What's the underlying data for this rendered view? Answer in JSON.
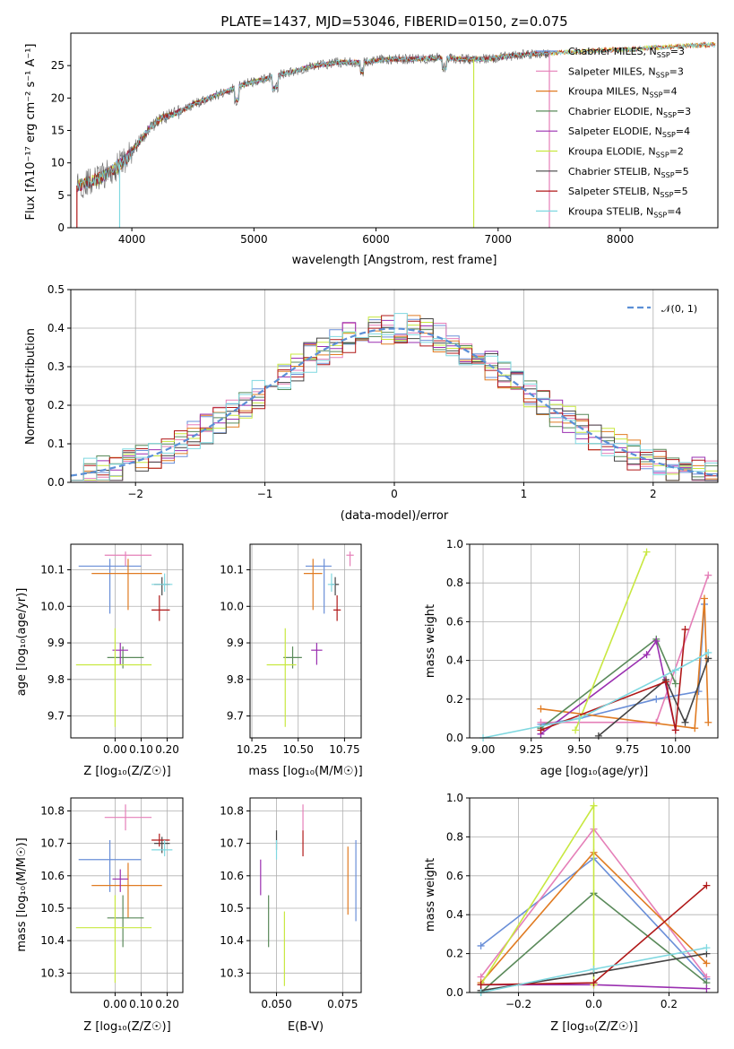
{
  "figure": {
    "title": "PLATE=1437, MJD=53046, FIBERID=0150, z=0.075"
  },
  "colors": {
    "Chabrier MILES": "#6a8fd8",
    "Salpeter MILES": "#e57fb8",
    "Kroupa MILES": "#e07b22",
    "Chabrier ELODIE": "#5a8a5a",
    "Salpeter ELODIE": "#9a2fb0",
    "Kroupa ELODIE": "#c8e840",
    "Chabrier STELIB": "#444444",
    "Salpeter STELIB": "#b01818",
    "Kroupa STELIB": "#7fd8e0",
    "gauss": "#5b8fd6"
  },
  "chart_data": [
    {
      "type": "line",
      "panel": "spectrum",
      "xlabel": "wavelength [Angstrom, rest frame]",
      "ylabel": "Flux [fλ10⁻¹⁷ erg cm⁻² s⁻¹ A⁻¹]",
      "xlim": [
        3500,
        8800
      ],
      "ylim": [
        0,
        30
      ],
      "xticks": [
        4000,
        5000,
        6000,
        7000,
        8000
      ],
      "yticks": [
        0,
        5,
        10,
        15,
        20,
        25
      ],
      "legend_position": "right",
      "legend": [
        {
          "name": "Chabrier MILES, N",
          "sub": "SSP",
          "tail": "=3"
        },
        {
          "name": "Salpeter MILES, N",
          "sub": "SSP",
          "tail": "=3"
        },
        {
          "name": "Kroupa MILES, N",
          "sub": "SSP",
          "tail": "=4"
        },
        {
          "name": "Chabrier ELODIE, N",
          "sub": "SSP",
          "tail": "=3"
        },
        {
          "name": "Salpeter ELODIE, N",
          "sub": "SSP",
          "tail": "=4"
        },
        {
          "name": "Kroupa ELODIE, N",
          "sub": "SSP",
          "tail": "=2"
        },
        {
          "name": "Chabrier STELIB, N",
          "sub": "SSP",
          "tail": "=5"
        },
        {
          "name": "Salpeter STELIB, N",
          "sub": "SSP",
          "tail": "=5"
        },
        {
          "name": "Kroupa STELIB, N",
          "sub": "SSP",
          "tail": "=4"
        }
      ],
      "continuum": {
        "x": [
          3550,
          3650,
          3750,
          3850,
          3950,
          4050,
          4150,
          4250,
          4350,
          4500,
          4700,
          4900,
          5100,
          5300,
          5500,
          5700,
          5900,
          6100,
          6300,
          6500,
          6700,
          6900,
          7100,
          7300,
          7500,
          7700,
          7900,
          8100,
          8300,
          8500,
          8700
        ],
        "y": [
          6.5,
          7.0,
          7.8,
          9.0,
          10.5,
          13.0,
          15.5,
          17.0,
          17.5,
          19.0,
          20.5,
          22.0,
          23.0,
          24.0,
          25.0,
          25.5,
          25.5,
          26.0,
          26.0,
          26.2,
          26.0,
          26.0,
          26.5,
          26.8,
          27.0,
          27.2,
          27.4,
          27.5,
          27.8,
          28.0,
          28.2
        ]
      }
    },
    {
      "type": "bar",
      "panel": "residuals",
      "xlabel": "(data-model)/error",
      "ylabel": "Normed distribution",
      "xlim": [
        -2.5,
        2.5
      ],
      "ylim": [
        0,
        0.5
      ],
      "xticks": [
        -2,
        -1,
        0,
        1,
        2
      ],
      "yticks": [
        0.0,
        0.1,
        0.2,
        0.3,
        0.4,
        0.5
      ],
      "legend": "𝒩(0, 1)",
      "legend_position": "top-right",
      "grid": true,
      "bin_width": 0.1
    },
    {
      "type": "scatter",
      "panel": "age_vs_Z",
      "xlabel": "Z [log₁₀(Z/Z☉)]",
      "ylabel": "age  [log₁₀(age/yr)]",
      "xlim": [
        -0.17,
        0.26
      ],
      "ylim": [
        9.64,
        10.17
      ],
      "xticks": [
        0.0,
        0.1,
        0.2
      ],
      "yticks": [
        9.7,
        9.8,
        9.9,
        10.0,
        10.1
      ],
      "grid": true,
      "points": [
        {
          "series": "Chabrier MILES",
          "x": -0.02,
          "y": 10.11,
          "xerr": [
            0.12,
            0.12
          ],
          "yerr": [
            0.13,
            0.02
          ]
        },
        {
          "series": "Salpeter MILES",
          "x": 0.04,
          "y": 10.14,
          "xerr": [
            0.08,
            0.1
          ],
          "yerr": [
            0.03,
            0.01
          ]
        },
        {
          "series": "Kroupa MILES",
          "x": 0.05,
          "y": 10.09,
          "xerr": [
            0.14,
            0.13
          ],
          "yerr": [
            0.1,
            0.04
          ]
        },
        {
          "series": "Chabrier ELODIE",
          "x": 0.03,
          "y": 9.86,
          "xerr": [
            0.06,
            0.08
          ],
          "yerr": [
            0.03,
            0.03
          ]
        },
        {
          "series": "Salpeter ELODIE",
          "x": 0.02,
          "y": 9.88,
          "xerr": [
            0.03,
            0.03
          ],
          "yerr": [
            0.04,
            0.02
          ]
        },
        {
          "series": "Kroupa ELODIE",
          "x": 0.0,
          "y": 9.84,
          "xerr": [
            0.15,
            0.14
          ],
          "yerr": [
            0.17,
            0.1
          ]
        },
        {
          "series": "Chabrier STELIB",
          "x": 0.18,
          "y": 10.06,
          "xerr": [
            0.03,
            0.03
          ],
          "yerr": [
            0.03,
            0.02
          ]
        },
        {
          "series": "Salpeter STELIB",
          "x": 0.17,
          "y": 9.99,
          "xerr": [
            0.03,
            0.04
          ],
          "yerr": [
            0.03,
            0.04
          ]
        },
        {
          "series": "Kroupa STELIB",
          "x": 0.19,
          "y": 10.06,
          "xerr": [
            0.05,
            0.03
          ],
          "yerr": [
            0.02,
            0.03
          ]
        }
      ]
    },
    {
      "type": "scatter",
      "panel": "age_vs_mass",
      "xlabel": "mass [log₁₀(M/M☉)]",
      "xlim": [
        10.24,
        10.84
      ],
      "ylim": [
        9.64,
        10.17
      ],
      "xticks": [
        10.25,
        10.5,
        10.75
      ],
      "yticks": [
        9.7,
        9.8,
        9.9,
        10.0,
        10.1
      ],
      "grid": true,
      "points": [
        {
          "series": "Chabrier MILES",
          "x": 10.64,
          "y": 10.11,
          "xerr": [
            0.1,
            0.04
          ],
          "yerr": [
            0.13,
            0.02
          ]
        },
        {
          "series": "Salpeter MILES",
          "x": 10.78,
          "y": 10.14,
          "xerr": [
            0.02,
            0.02
          ],
          "yerr": [
            0.03,
            0.01
          ]
        },
        {
          "series": "Kroupa MILES",
          "x": 10.58,
          "y": 10.09,
          "xerr": [
            0.05,
            0.05
          ],
          "yerr": [
            0.1,
            0.04
          ]
        },
        {
          "series": "Chabrier ELODIE",
          "x": 10.47,
          "y": 9.86,
          "xerr": [
            0.05,
            0.05
          ],
          "yerr": [
            0.03,
            0.03
          ]
        },
        {
          "series": "Salpeter ELODIE",
          "x": 10.6,
          "y": 9.88,
          "xerr": [
            0.03,
            0.03
          ],
          "yerr": [
            0.04,
            0.02
          ]
        },
        {
          "series": "Kroupa ELODIE",
          "x": 10.43,
          "y": 9.84,
          "xerr": [
            0.1,
            0.06
          ],
          "yerr": [
            0.17,
            0.1
          ]
        },
        {
          "series": "Chabrier STELIB",
          "x": 10.7,
          "y": 10.06,
          "xerr": [
            0.02,
            0.02
          ],
          "yerr": [
            0.03,
            0.02
          ]
        },
        {
          "series": "Salpeter STELIB",
          "x": 10.71,
          "y": 9.99,
          "xerr": [
            0.02,
            0.02
          ],
          "yerr": [
            0.03,
            0.04
          ]
        },
        {
          "series": "Kroupa STELIB",
          "x": 10.68,
          "y": 10.06,
          "xerr": [
            0.02,
            0.02
          ],
          "yerr": [
            0.02,
            0.03
          ]
        }
      ]
    },
    {
      "type": "line",
      "panel": "weight_vs_age",
      "xlabel": "age  [log₁₀(age/yr)]",
      "ylabel": "mass weight",
      "xlim": [
        8.93,
        10.22
      ],
      "ylim": [
        0,
        1
      ],
      "xticks": [
        9.0,
        9.25,
        9.5,
        9.75,
        10.0
      ],
      "yticks": [
        0.0,
        0.2,
        0.4,
        0.6,
        0.8,
        1.0
      ],
      "grid": true,
      "series": [
        {
          "name": "Chabrier MILES",
          "x": [
            9.3,
            9.5,
            9.9,
            10.12,
            10.15
          ],
          "y": [
            0.07,
            0.1,
            0.2,
            0.24,
            0.69
          ]
        },
        {
          "name": "Salpeter MILES",
          "x": [
            9.3,
            9.9,
            10.17
          ],
          "y": [
            0.08,
            0.08,
            0.84
          ]
        },
        {
          "name": "Kroupa MILES",
          "x": [
            9.3,
            10.1,
            10.15,
            10.17
          ],
          "y": [
            0.15,
            0.05,
            0.72,
            0.08
          ]
        },
        {
          "name": "Chabrier ELODIE",
          "x": [
            9.3,
            9.9,
            10.0
          ],
          "y": [
            0.05,
            0.51,
            0.28
          ]
        },
        {
          "name": "Salpeter ELODIE",
          "x": [
            9.3,
            9.85,
            9.9,
            10.0
          ],
          "y": [
            0.02,
            0.43,
            0.5,
            0.04
          ]
        },
        {
          "name": "Kroupa ELODIE",
          "x": [
            9.48,
            9.85
          ],
          "y": [
            0.04,
            0.96
          ]
        },
        {
          "name": "Chabrier STELIB",
          "x": [
            9.6,
            9.95,
            10.05,
            10.17
          ],
          "y": [
            0.01,
            0.3,
            0.08,
            0.41
          ]
        },
        {
          "name": "Salpeter STELIB",
          "x": [
            9.3,
            9.95,
            10.0,
            10.05
          ],
          "y": [
            0.04,
            0.29,
            0.04,
            0.56
          ]
        },
        {
          "name": "Kroupa STELIB",
          "x": [
            9.0,
            9.5,
            10.0,
            10.17
          ],
          "y": [
            0.0,
            0.1,
            0.35,
            0.44
          ]
        }
      ]
    },
    {
      "type": "scatter",
      "panel": "mass_vs_Z",
      "xlabel": "Z [log₁₀(Z/Z☉)]",
      "ylabel": "mass [log₁₀(M/M☉)]",
      "xlim": [
        -0.17,
        0.26
      ],
      "ylim": [
        10.24,
        10.84
      ],
      "xticks": [
        0.0,
        0.1,
        0.2
      ],
      "yticks": [
        10.3,
        10.4,
        10.5,
        10.6,
        10.7,
        10.8
      ],
      "grid": true,
      "points": [
        {
          "series": "Chabrier MILES",
          "x": -0.02,
          "y": 10.65,
          "xerr": [
            0.12,
            0.12
          ],
          "yerr": [
            0.1,
            0.06
          ]
        },
        {
          "series": "Salpeter MILES",
          "x": 0.04,
          "y": 10.78,
          "xerr": [
            0.08,
            0.1
          ],
          "yerr": [
            0.04,
            0.04
          ]
        },
        {
          "series": "Kroupa MILES",
          "x": 0.05,
          "y": 10.57,
          "xerr": [
            0.14,
            0.13
          ],
          "yerr": [
            0.1,
            0.07
          ]
        },
        {
          "series": "Chabrier ELODIE",
          "x": 0.03,
          "y": 10.47,
          "xerr": [
            0.06,
            0.08
          ],
          "yerr": [
            0.09,
            0.07
          ]
        },
        {
          "series": "Salpeter ELODIE",
          "x": 0.02,
          "y": 10.59,
          "xerr": [
            0.03,
            0.03
          ],
          "yerr": [
            0.04,
            0.03
          ]
        },
        {
          "series": "Kroupa ELODIE",
          "x": 0.0,
          "y": 10.44,
          "xerr": [
            0.15,
            0.14
          ],
          "yerr": [
            0.17,
            0.1
          ]
        },
        {
          "series": "Chabrier STELIB",
          "x": 0.18,
          "y": 10.7,
          "xerr": [
            0.03,
            0.03
          ],
          "yerr": [
            0.03,
            0.02
          ]
        },
        {
          "series": "Salpeter STELIB",
          "x": 0.17,
          "y": 10.71,
          "xerr": [
            0.03,
            0.04
          ],
          "yerr": [
            0.02,
            0.02
          ]
        },
        {
          "series": "Kroupa STELIB",
          "x": 0.19,
          "y": 10.68,
          "xerr": [
            0.05,
            0.03
          ],
          "yerr": [
            0.02,
            0.03
          ]
        }
      ]
    },
    {
      "type": "scatter",
      "panel": "mass_vs_ebv",
      "xlabel": "E(B-V)",
      "xlim": [
        0.04,
        0.082
      ],
      "ylim": [
        10.24,
        10.84
      ],
      "xticks": [
        0.05,
        0.075
      ],
      "yticks": [
        10.3,
        10.4,
        10.5,
        10.6,
        10.7,
        10.8
      ],
      "grid": true,
      "points": [
        {
          "series": "Chabrier MILES",
          "x": 0.08,
          "y": 10.59,
          "yerr": [
            0.13,
            0.12
          ]
        },
        {
          "series": "Salpeter MILES",
          "x": 0.06,
          "y": 10.78,
          "yerr": [
            0.04,
            0.04
          ]
        },
        {
          "series": "Kroupa MILES",
          "x": 0.077,
          "y": 10.58,
          "yerr": [
            0.1,
            0.11
          ]
        },
        {
          "series": "Chabrier ELODIE",
          "x": 0.047,
          "y": 10.46,
          "yerr": [
            0.08,
            0.08
          ]
        },
        {
          "series": "Salpeter ELODIE",
          "x": 0.044,
          "y": 10.6,
          "yerr": [
            0.06,
            0.05
          ]
        },
        {
          "series": "Kroupa ELODIE",
          "x": 0.053,
          "y": 10.38,
          "yerr": [
            0.12,
            0.11
          ]
        },
        {
          "series": "Chabrier STELIB",
          "x": 0.05,
          "y": 10.71,
          "yerr": [
            0.03,
            0.03
          ]
        },
        {
          "series": "Salpeter STELIB",
          "x": 0.06,
          "y": 10.7,
          "yerr": [
            0.04,
            0.04
          ]
        },
        {
          "series": "Kroupa STELIB",
          "x": 0.05,
          "y": 10.68,
          "yerr": [
            0.03,
            0.03
          ]
        }
      ]
    },
    {
      "type": "line",
      "panel": "weight_vs_Z",
      "xlabel": "Z [log₁₀(Z/Z☉)]",
      "ylabel": "mass weight",
      "xlim": [
        -0.33,
        0.33
      ],
      "ylim": [
        0,
        1
      ],
      "xticks": [
        -0.2,
        0.0,
        0.2
      ],
      "yticks": [
        0.0,
        0.2,
        0.4,
        0.6,
        0.8,
        1.0
      ],
      "grid": true,
      "series": [
        {
          "name": "Chabrier MILES",
          "x": [
            -0.3,
            0.0,
            0.3
          ],
          "y": [
            0.24,
            0.69,
            0.07
          ]
        },
        {
          "name": "Salpeter MILES",
          "x": [
            -0.3,
            0.0,
            0.3
          ],
          "y": [
            0.08,
            0.84,
            0.08
          ]
        },
        {
          "name": "Kroupa MILES",
          "x": [
            -0.3,
            0.0,
            0.3
          ],
          "y": [
            0.05,
            0.72,
            0.15
          ]
        },
        {
          "name": "Chabrier ELODIE",
          "x": [
            -0.3,
            0.0,
            0.3
          ],
          "y": [
            0.0,
            0.51,
            0.05
          ]
        },
        {
          "name": "Salpeter ELODIE",
          "x": [
            -0.3,
            0.0,
            0.3
          ],
          "y": [
            0.04,
            0.04,
            0.02
          ]
        },
        {
          "name": "Kroupa ELODIE",
          "x": [
            -0.3,
            0.0,
            0.0
          ],
          "y": [
            0.04,
            0.96,
            0.04
          ]
        },
        {
          "name": "Chabrier STELIB",
          "x": [
            -0.3,
            0.0,
            0.3
          ],
          "y": [
            0.01,
            0.1,
            0.2
          ]
        },
        {
          "name": "Salpeter STELIB",
          "x": [
            -0.3,
            0.0,
            0.3
          ],
          "y": [
            0.04,
            0.05,
            0.55
          ]
        },
        {
          "name": "Kroupa STELIB",
          "x": [
            -0.3,
            0.0,
            0.3
          ],
          "y": [
            0.0,
            0.12,
            0.23
          ]
        }
      ]
    }
  ]
}
